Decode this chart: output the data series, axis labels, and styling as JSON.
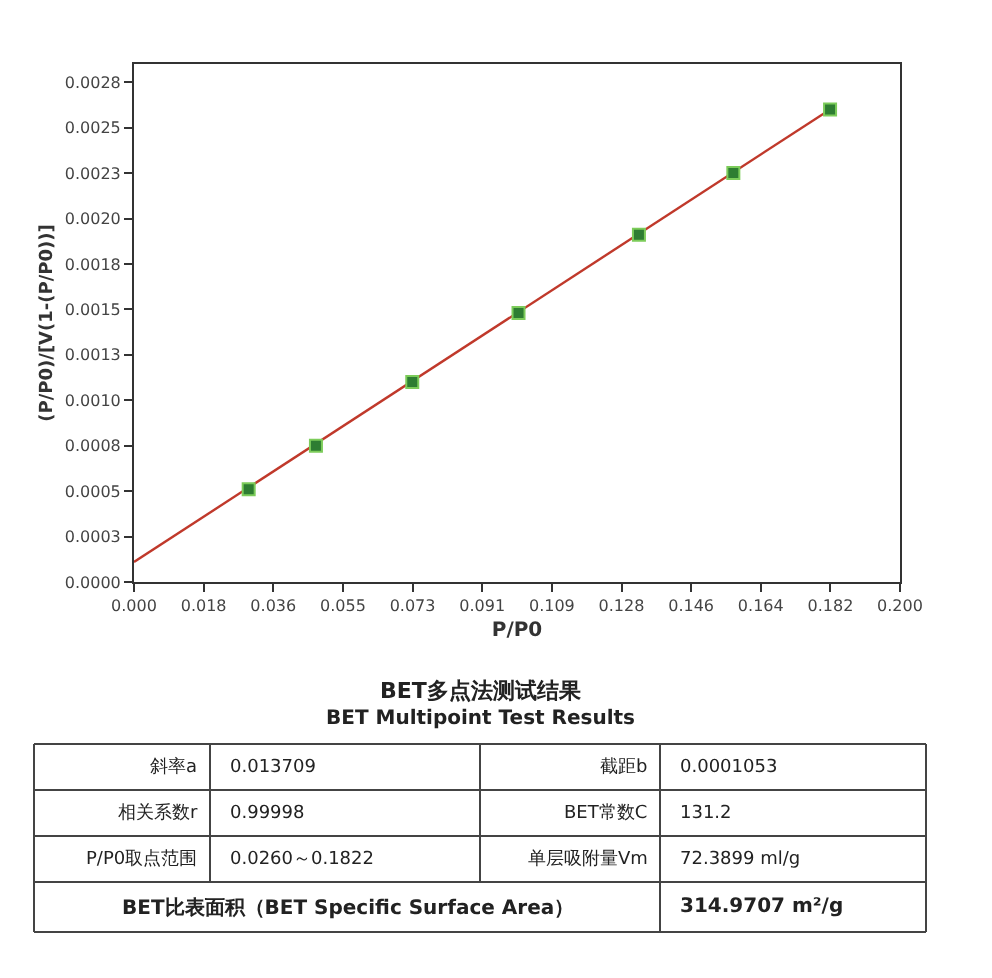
{
  "chart_data": {
    "type": "scatter",
    "xlabel": "P/P0",
    "ylabel": "(P/P0)/[V(1-(P/P0))]",
    "xlim": [
      0,
      0.2004
    ],
    "ylim": [
      0,
      0.00285
    ],
    "xticks": [
      {
        "value": 0,
        "label": "0.000"
      },
      {
        "value": 0.01822,
        "label": "0.018"
      },
      {
        "value": 0.03644,
        "label": "0.036"
      },
      {
        "value": 0.05466,
        "label": "0.055"
      },
      {
        "value": 0.07288,
        "label": "0.073"
      },
      {
        "value": 0.0911,
        "label": "0.091"
      },
      {
        "value": 0.10932,
        "label": "0.109"
      },
      {
        "value": 0.12754,
        "label": "0.128"
      },
      {
        "value": 0.14576,
        "label": "0.146"
      },
      {
        "value": 0.16398,
        "label": "0.164"
      },
      {
        "value": 0.1822,
        "label": "0.182"
      },
      {
        "value": 0.2004,
        "label": "0.200"
      }
    ],
    "yticks": [
      {
        "value": 0,
        "label": "0.0000"
      },
      {
        "value": 0.00025,
        "label": "0.0003"
      },
      {
        "value": 0.0005,
        "label": "0.0005"
      },
      {
        "value": 0.00075,
        "label": "0.0008"
      },
      {
        "value": 0.001,
        "label": "0.0010"
      },
      {
        "value": 0.00125,
        "label": "0.0013"
      },
      {
        "value": 0.0015,
        "label": "0.0015"
      },
      {
        "value": 0.00175,
        "label": "0.0018"
      },
      {
        "value": 0.002,
        "label": "0.0020"
      },
      {
        "value": 0.00225,
        "label": "0.0023"
      },
      {
        "value": 0.0025,
        "label": "0.0025"
      },
      {
        "value": 0.00275,
        "label": "0.0028"
      }
    ],
    "grid": false,
    "marker": "square",
    "line_style": "solid",
    "series": [
      {
        "color": "#2e7d32",
        "x": [
          0.03,
          0.0476,
          0.0728,
          0.1006,
          0.1321,
          0.1568,
          0.1821
        ],
        "values": [
          0.00051,
          0.00075,
          0.0011,
          0.00148,
          0.00191,
          0.00225,
          0.0026
        ]
      },
      {
        "type": "line",
        "marker": "none",
        "color": "#c0392b",
        "x": [
          0,
          0.1821
        ],
        "values": [
          0.00011,
          0.0026
        ]
      }
    ],
    "annotations": [
      "BET多点法测试结果",
      "BET Multipoint Test Results",
      "斜率a",
      "0.013709",
      "截距b",
      "0.0001053",
      "相关系数r",
      "0.99998",
      "BET常数C",
      "131.2",
      "P/P0取点范围",
      "0.0260～0.1822",
      "单层吸附量Vm",
      "72.3899 ml/g",
      "BET比表面积（BET Specific Surface Area）",
      "314.9707 m²/g"
    ]
  }
}
